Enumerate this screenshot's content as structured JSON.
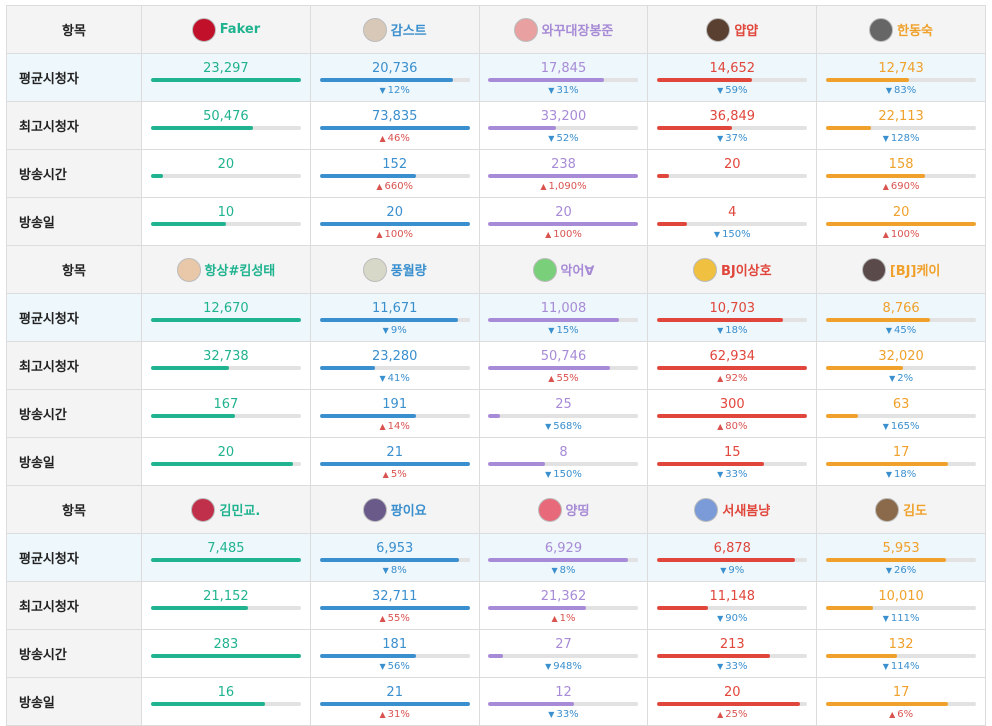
{
  "label_item": "항목",
  "metric_labels": [
    "평균시청자",
    "최고시청자",
    "방송시간",
    "방송일"
  ],
  "colors": [
    "#20b38f",
    "#3a8fce",
    "#a78bd6",
    "#e0463b",
    "#f0a12b"
  ],
  "groups": [
    {
      "streamers": [
        {
          "name": "Faker",
          "avatar": "#c0102a"
        },
        {
          "name": "감스트",
          "avatar": "#d8c8b8"
        },
        {
          "name": "와꾸대장봉준",
          "avatar": "#e8a0a0"
        },
        {
          "name": "얍얍",
          "avatar": "#5a4030"
        },
        {
          "name": "한동숙",
          "avatar": "#666"
        }
      ],
      "rows": [
        [
          [
            "23,297",
            1.0,
            "",
            ""
          ],
          [
            "20,736",
            0.89,
            "down",
            "12%"
          ],
          [
            "17,845",
            0.77,
            "down",
            "31%"
          ],
          [
            "14,652",
            0.63,
            "down",
            "59%"
          ],
          [
            "12,743",
            0.55,
            "down",
            "83%"
          ]
        ],
        [
          [
            "50,476",
            0.68,
            "",
            ""
          ],
          [
            "73,835",
            1.0,
            "up",
            "46%"
          ],
          [
            "33,200",
            0.45,
            "down",
            "52%"
          ],
          [
            "36,849",
            0.5,
            "down",
            "37%"
          ],
          [
            "22,113",
            0.3,
            "down",
            "128%"
          ]
        ],
        [
          [
            "20",
            0.08,
            "",
            ""
          ],
          [
            "152",
            0.64,
            "up",
            "660%"
          ],
          [
            "238",
            1.0,
            "up",
            "1,090%"
          ],
          [
            "20",
            0.08,
            "",
            ""
          ],
          [
            "158",
            0.66,
            "up",
            "690%"
          ]
        ],
        [
          [
            "10",
            0.5,
            "",
            ""
          ],
          [
            "20",
            1.0,
            "up",
            "100%"
          ],
          [
            "20",
            1.0,
            "up",
            "100%"
          ],
          [
            "4",
            0.2,
            "down",
            "150%"
          ],
          [
            "20",
            1.0,
            "up",
            "100%"
          ]
        ]
      ]
    },
    {
      "streamers": [
        {
          "name": "항상#킴성태",
          "avatar": "#e8c8a8"
        },
        {
          "name": "풍월량",
          "avatar": "#d8d8c8"
        },
        {
          "name": "악어∀",
          "avatar": "#7ad07a"
        },
        {
          "name": "BJ이상호",
          "avatar": "#f0c040"
        },
        {
          "name": "[BJ]케이",
          "avatar": "#5a4a4a"
        }
      ],
      "rows": [
        [
          [
            "12,670",
            1.0,
            "",
            ""
          ],
          [
            "11,671",
            0.92,
            "down",
            "9%"
          ],
          [
            "11,008",
            0.87,
            "down",
            "15%"
          ],
          [
            "10,703",
            0.84,
            "down",
            "18%"
          ],
          [
            "8,766",
            0.69,
            "down",
            "45%"
          ]
        ],
        [
          [
            "32,738",
            0.52,
            "",
            ""
          ],
          [
            "23,280",
            0.37,
            "down",
            "41%"
          ],
          [
            "50,746",
            0.81,
            "up",
            "55%"
          ],
          [
            "62,934",
            1.0,
            "up",
            "92%"
          ],
          [
            "32,020",
            0.51,
            "down",
            "2%"
          ]
        ],
        [
          [
            "167",
            0.56,
            "",
            ""
          ],
          [
            "191",
            0.64,
            "up",
            "14%"
          ],
          [
            "25",
            0.08,
            "down",
            "568%"
          ],
          [
            "300",
            1.0,
            "up",
            "80%"
          ],
          [
            "63",
            0.21,
            "down",
            "165%"
          ]
        ],
        [
          [
            "20",
            0.95,
            "",
            ""
          ],
          [
            "21",
            1.0,
            "up",
            "5%"
          ],
          [
            "8",
            0.38,
            "down",
            "150%"
          ],
          [
            "15",
            0.71,
            "down",
            "33%"
          ],
          [
            "17",
            0.81,
            "down",
            "18%"
          ]
        ]
      ]
    },
    {
      "streamers": [
        {
          "name": "김민교.",
          "avatar": "#c0304a"
        },
        {
          "name": "팡이요",
          "avatar": "#6a5a8a"
        },
        {
          "name": "양띵",
          "avatar": "#e86a7a"
        },
        {
          "name": "서새봄냥",
          "avatar": "#7a9ad8"
        },
        {
          "name": "김도",
          "avatar": "#8a6a4a"
        }
      ],
      "rows": [
        [
          [
            "7,485",
            1.0,
            "",
            ""
          ],
          [
            "6,953",
            0.93,
            "down",
            "8%"
          ],
          [
            "6,929",
            0.93,
            "down",
            "8%"
          ],
          [
            "6,878",
            0.92,
            "down",
            "9%"
          ],
          [
            "5,953",
            0.8,
            "down",
            "26%"
          ]
        ],
        [
          [
            "21,152",
            0.65,
            "",
            ""
          ],
          [
            "32,711",
            1.0,
            "up",
            "55%"
          ],
          [
            "21,362",
            0.65,
            "up",
            "1%"
          ],
          [
            "11,148",
            0.34,
            "down",
            "90%"
          ],
          [
            "10,010",
            0.31,
            "down",
            "111%"
          ]
        ],
        [
          [
            "283",
            1.0,
            "",
            ""
          ],
          [
            "181",
            0.64,
            "down",
            "56%"
          ],
          [
            "27",
            0.1,
            "down",
            "948%"
          ],
          [
            "213",
            0.75,
            "down",
            "33%"
          ],
          [
            "132",
            0.47,
            "down",
            "114%"
          ]
        ],
        [
          [
            "16",
            0.76,
            "",
            ""
          ],
          [
            "21",
            1.0,
            "up",
            "31%"
          ],
          [
            "12",
            0.57,
            "down",
            "33%"
          ],
          [
            "20",
            0.95,
            "up",
            "25%"
          ],
          [
            "17",
            0.81,
            "up",
            "6%"
          ]
        ]
      ]
    }
  ]
}
